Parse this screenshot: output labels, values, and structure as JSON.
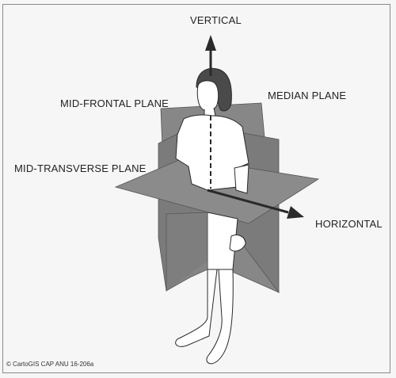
{
  "labels": {
    "vertical": "VERTICAL",
    "mid_frontal": "MID-FRONTAL PLANE",
    "median": "MEDIAN PLANE",
    "mid_transverse": "MID-TRANSVERSE PLANE",
    "horizontal": "HORIZONTAL"
  },
  "credit": "© CartoGIS CAP ANU 16-206a",
  "colors": {
    "background": "#f7f6f6",
    "plane_fill": "#878787",
    "plane_dark": "#6f6f6f",
    "figure_fill": "#ffffff",
    "outline": "#2a2a2a",
    "hair": "#4a4a4a"
  }
}
